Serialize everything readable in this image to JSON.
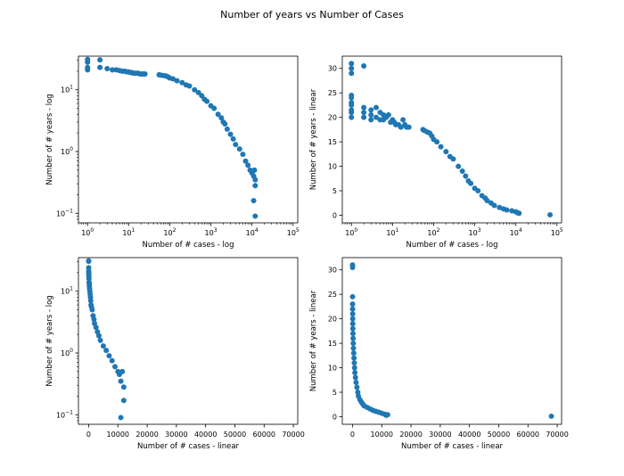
{
  "suptitle": "Number of years  vs Number of Cases",
  "colors": {
    "marker": "#1f77b4",
    "axis": "#000000",
    "background": "#ffffff"
  },
  "chart_data": [
    {
      "type": "scatter",
      "xscale": "log",
      "yscale": "log",
      "xlabel": "Number of # cases - log",
      "ylabel": "Number of # years - log",
      "xlim": [
        0.6,
        130000
      ],
      "ylim": [
        0.07,
        35
      ],
      "xticks": [
        {
          "v": 1,
          "base": "10",
          "exp": "0"
        },
        {
          "v": 10,
          "base": "10",
          "exp": "1"
        },
        {
          "v": 100,
          "base": "10",
          "exp": "2"
        },
        {
          "v": 1000,
          "base": "10",
          "exp": "3"
        },
        {
          "v": 10000,
          "base": "10",
          "exp": "4"
        },
        {
          "v": 100000,
          "base": "10",
          "exp": "5"
        }
      ],
      "yticks": [
        {
          "v": 0.1,
          "base": "10",
          "exp": "−1"
        },
        {
          "v": 1,
          "base": "10",
          "exp": "0"
        },
        {
          "v": 10,
          "base": "10",
          "exp": "1"
        }
      ],
      "grid": false,
      "x": [
        1,
        1,
        1,
        1,
        2,
        2,
        3,
        4,
        5,
        6,
        7,
        8,
        9,
        10,
        11,
        12,
        13,
        15,
        17,
        19,
        21,
        23,
        25,
        55,
        60,
        70,
        80,
        90,
        100,
        120,
        150,
        200,
        250,
        300,
        400,
        500,
        600,
        700,
        800,
        1000,
        1200,
        1500,
        1800,
        2000,
        2200,
        2500,
        3000,
        3500,
        4000,
        5000,
        6000,
        7000,
        8000,
        9000,
        10000,
        11000,
        12000,
        11500,
        12000,
        11000,
        12000
      ],
      "y": [
        31,
        28,
        23,
        21,
        30.5,
        23,
        22,
        21,
        21,
        20.5,
        20,
        20,
        19.5,
        19.5,
        19,
        19,
        18.5,
        18.5,
        18.5,
        18,
        18,
        18,
        18,
        17.5,
        17.3,
        17,
        16.8,
        16.2,
        15.5,
        15,
        14,
        13,
        12,
        11.5,
        10,
        9,
        8,
        7,
        6.5,
        5.5,
        5,
        4,
        3.5,
        3,
        2.8,
        2.3,
        1.9,
        1.6,
        1.3,
        1.1,
        0.9,
        0.7,
        0.6,
        0.5,
        0.45,
        0.4,
        0.35,
        0.5,
        0.28,
        0.16,
        0.09
      ]
    },
    {
      "type": "scatter",
      "xscale": "log",
      "yscale": "linear",
      "xlabel": "Number of # cases - log",
      "ylabel": "Number of # years - linear",
      "xlim": [
        0.6,
        130000
      ],
      "ylim": [
        -1.55,
        32.5
      ],
      "xticks": [
        {
          "v": 1,
          "base": "10",
          "exp": "0"
        },
        {
          "v": 10,
          "base": "10",
          "exp": "1"
        },
        {
          "v": 100,
          "base": "10",
          "exp": "2"
        },
        {
          "v": 1000,
          "base": "10",
          "exp": "3"
        },
        {
          "v": 10000,
          "base": "10",
          "exp": "4"
        },
        {
          "v": 100000,
          "base": "10",
          "exp": "5"
        }
      ],
      "yticks": [
        {
          "v": 0,
          "label": "0"
        },
        {
          "v": 5,
          "label": "5"
        },
        {
          "v": 10,
          "label": "10"
        },
        {
          "v": 15,
          "label": "15"
        },
        {
          "v": 20,
          "label": "20"
        },
        {
          "v": 25,
          "label": "25"
        },
        {
          "v": 30,
          "label": "30"
        }
      ],
      "grid": false,
      "x": [
        1,
        1,
        1,
        1,
        1,
        1,
        1,
        1,
        1,
        1,
        2,
        2,
        2,
        2,
        3,
        3,
        3,
        4,
        4,
        5,
        5,
        6,
        6,
        7,
        8,
        9,
        10,
        11,
        12,
        14,
        16,
        18,
        20,
        22,
        25,
        55,
        60,
        70,
        80,
        90,
        100,
        120,
        150,
        200,
        250,
        300,
        400,
        500,
        600,
        700,
        800,
        1000,
        1200,
        1500,
        1800,
        2000,
        2500,
        3000,
        4000,
        5000,
        6000,
        8000,
        10000,
        11000,
        12000,
        68000
      ],
      "y": [
        31,
        30,
        29,
        24.5,
        24,
        23,
        22.5,
        21.5,
        21,
        20,
        30.5,
        22,
        21,
        20,
        21.5,
        20.5,
        19.5,
        22,
        20,
        21,
        19.5,
        20.5,
        19.5,
        20,
        20.5,
        19,
        19.5,
        19,
        18.5,
        18.5,
        18,
        19.5,
        18.5,
        18,
        18,
        17.5,
        17.3,
        17,
        16.8,
        16.2,
        15.5,
        15,
        14,
        13,
        12,
        11.5,
        10,
        9,
        8,
        7,
        6.5,
        5.5,
        5,
        4,
        3.5,
        3,
        2.5,
        2,
        1.6,
        1.3,
        1.1,
        0.9,
        0.7,
        0.5,
        0.4,
        0.1
      ]
    },
    {
      "type": "scatter",
      "xscale": "linear",
      "yscale": "log",
      "xlabel": "Number of # cases - linear",
      "ylabel": "Number of # years - log",
      "xlim": [
        -3500,
        71500
      ],
      "ylim": [
        0.07,
        35
      ],
      "xticks": [
        {
          "v": 0,
          "label": "0"
        },
        {
          "v": 10000,
          "label": "10000"
        },
        {
          "v": 20000,
          "label": "20000"
        },
        {
          "v": 30000,
          "label": "30000"
        },
        {
          "v": 40000,
          "label": "40000"
        },
        {
          "v": 50000,
          "label": "50000"
        },
        {
          "v": 60000,
          "label": "60000"
        },
        {
          "v": 70000,
          "label": "70000"
        }
      ],
      "yticks": [
        {
          "v": 0.1,
          "base": "10",
          "exp": "−1"
        },
        {
          "v": 1,
          "base": "10",
          "exp": "0"
        },
        {
          "v": 10,
          "base": "10",
          "exp": "1"
        }
      ],
      "grid": false,
      "x": [
        1,
        2,
        5,
        10,
        20,
        50,
        80,
        100,
        150,
        200,
        250,
        300,
        400,
        500,
        600,
        700,
        800,
        1000,
        1200,
        1500,
        1800,
        2000,
        2500,
        3000,
        3500,
        4000,
        5000,
        6000,
        7000,
        8000,
        9000,
        10000,
        10500,
        11000,
        11500,
        12000,
        11000,
        12000
      ],
      "y": [
        31,
        30.5,
        24,
        21,
        20,
        19,
        17.5,
        16,
        14,
        13,
        12,
        11,
        10,
        9,
        8,
        7,
        6,
        5.5,
        5,
        4,
        3.5,
        3,
        2.6,
        2.2,
        1.9,
        1.6,
        1.3,
        1.1,
        0.9,
        0.75,
        0.6,
        0.5,
        0.45,
        0.35,
        0.5,
        0.28,
        0.09,
        0.17
      ]
    },
    {
      "type": "scatter",
      "xscale": "linear",
      "yscale": "linear",
      "xlabel": "Number of # cases - linear",
      "ylabel": "Number of # years - linear",
      "xlim": [
        -3500,
        71500
      ],
      "ylim": [
        -1.55,
        32.5
      ],
      "xticks": [
        {
          "v": 0,
          "label": "0"
        },
        {
          "v": 10000,
          "label": "10000"
        },
        {
          "v": 20000,
          "label": "20000"
        },
        {
          "v": 30000,
          "label": "30000"
        },
        {
          "v": 40000,
          "label": "40000"
        },
        {
          "v": 50000,
          "label": "50000"
        },
        {
          "v": 60000,
          "label": "60000"
        },
        {
          "v": 70000,
          "label": "70000"
        }
      ],
      "yticks": [
        {
          "v": 0,
          "label": "0"
        },
        {
          "v": 5,
          "label": "5"
        },
        {
          "v": 10,
          "label": "10"
        },
        {
          "v": 15,
          "label": "15"
        },
        {
          "v": 20,
          "label": "20"
        },
        {
          "v": 25,
          "label": "25"
        },
        {
          "v": 30,
          "label": "30"
        }
      ],
      "grid": false,
      "x": [
        1,
        2,
        5,
        10,
        20,
        40,
        60,
        80,
        100,
        150,
        200,
        250,
        300,
        400,
        500,
        600,
        700,
        800,
        1000,
        1200,
        1500,
        1800,
        2000,
        2500,
        3000,
        3500,
        4000,
        5000,
        6000,
        7000,
        8000,
        9000,
        10000,
        11000,
        12000,
        11500,
        68000
      ],
      "y": [
        31,
        30.5,
        24.5,
        23,
        22,
        21,
        20,
        19,
        18,
        17,
        16,
        15,
        14,
        13,
        12,
        11,
        10,
        9,
        8,
        7,
        6,
        5,
        4.2,
        3.5,
        3,
        2.6,
        2.2,
        1.9,
        1.6,
        1.3,
        1.1,
        0.9,
        0.7,
        0.5,
        0.4,
        0.3,
        0.1
      ]
    }
  ]
}
